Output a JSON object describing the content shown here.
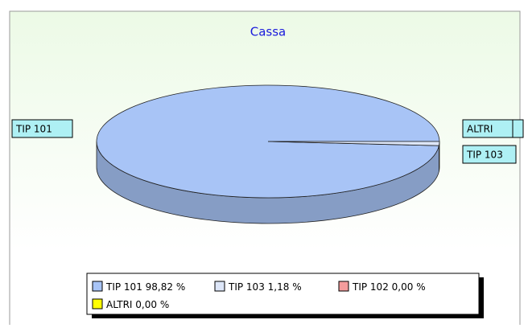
{
  "chart_data": {
    "type": "pie",
    "title": "Cassa",
    "categories": [
      "TIP 101",
      "TIP 103",
      "TIP 102",
      "ALTRI"
    ],
    "values": [
      98.82,
      1.18,
      0,
      0
    ],
    "value_labels": [
      "98,82 %",
      "1,18 %",
      "0,00 %",
      "0,00 %"
    ],
    "colors": [
      "#a8c4f6",
      "#dde6f8",
      "#f49c9c",
      "#ffff00"
    ]
  }
}
